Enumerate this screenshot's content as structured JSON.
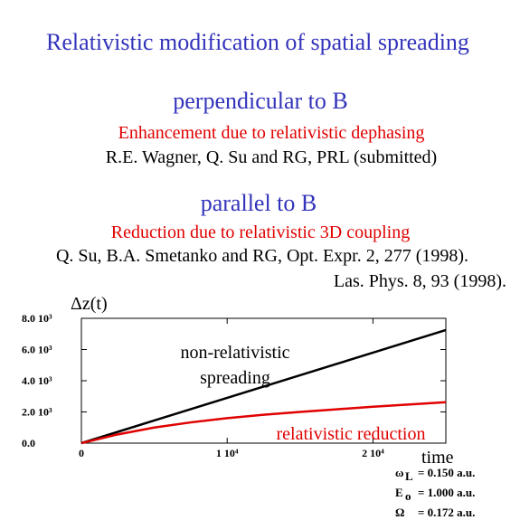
{
  "slide": {
    "title": "Relativistic modification of spatial spreading",
    "section1": {
      "heading": "perpendicular to B",
      "subtitle": "Enhancement due to relativistic dephasing",
      "citation": "R.E. Wagner, Q. Su and RG, PRL (submitted)"
    },
    "section2": {
      "heading": "parallel to B",
      "subtitle": "Reduction due to relativistic 3D coupling",
      "citation": "Q. Su, B.A. Smetanko and RG, Opt. Expr. 2, 277 (1998).",
      "citation2": "Las. Phys. 8, 93  (1998)."
    },
    "params": [
      {
        "symbol": "ω",
        "sub": "L",
        "value": "= 0.150 a.u."
      },
      {
        "symbol": "E",
        "sub": "o",
        "value": "= 1.000 a.u."
      },
      {
        "symbol": "Ω",
        "value": "= 0.172 a.u."
      }
    ]
  },
  "chart_data": {
    "type": "line",
    "y_label": "Δz(t)",
    "x_label": "time",
    "x": [
      0,
      2500,
      5000,
      7500,
      10000,
      12500,
      15000,
      17500,
      20000,
      22500,
      25000
    ],
    "series": [
      {
        "color": "#000000",
        "values": [
          0,
          725,
          1450,
          2175,
          2900,
          3625,
          4350,
          5075,
          5800,
          6525,
          7250
        ]
      },
      {
        "color": "#e00000",
        "values": [
          0,
          560,
          1000,
          1330,
          1600,
          1820,
          2000,
          2170,
          2330,
          2480,
          2620
        ]
      }
    ],
    "xlim": [
      0,
      25000
    ],
    "ylim": [
      0,
      8000
    ],
    "xticks": [
      0,
      {
        "value": 10000,
        "label": "1 10⁴"
      },
      {
        "value": 20000,
        "label": "2 10⁴"
      }
    ],
    "yticks": [
      {
        "value": 0,
        "label": "0.0"
      },
      {
        "value": 2000,
        "label": "2.0 10³"
      },
      {
        "value": 4000,
        "label": "4.0 10³"
      },
      {
        "value": 6000,
        "label": "6.0 10³"
      },
      {
        "value": 8000,
        "label": "8.0 10³"
      }
    ],
    "annotations": [
      {
        "text": "non-relativistic",
        "color": "#000000"
      },
      {
        "text": "spreading",
        "color": "#000000"
      },
      {
        "text": "relativistic reduction",
        "color": "#e00000"
      }
    ]
  }
}
